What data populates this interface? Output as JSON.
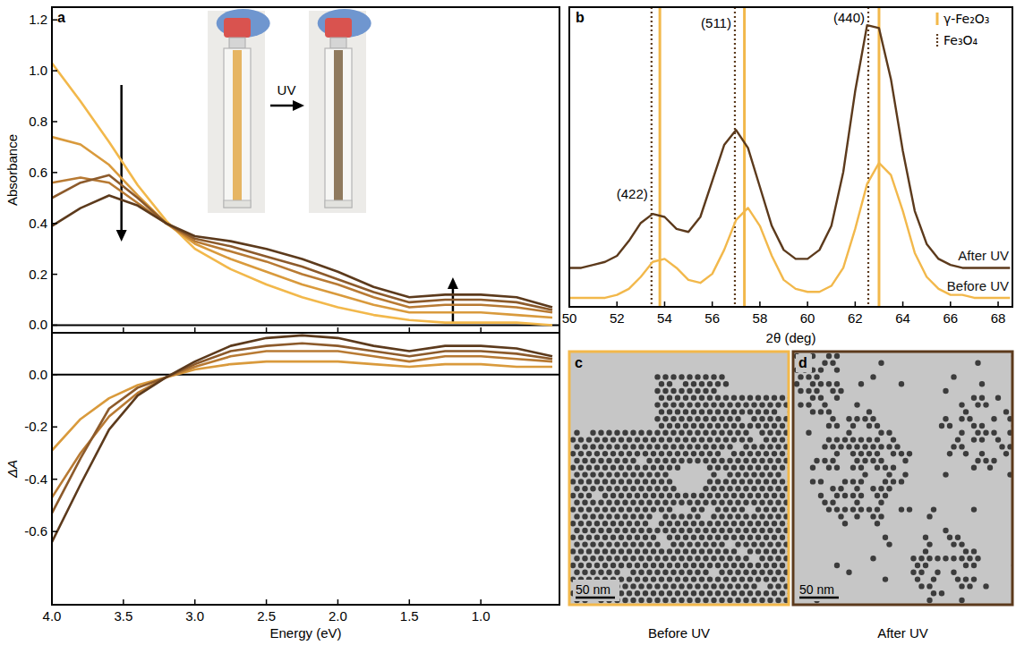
{
  "chart_data": [
    {
      "type": "line",
      "panel": "a",
      "y_label": "Absorbance",
      "x": [
        4.0,
        3.8,
        3.6,
        3.4,
        3.2,
        3.0,
        2.75,
        2.5,
        2.25,
        2.0,
        1.75,
        1.5,
        1.25,
        1.0,
        0.75,
        0.5
      ],
      "xlim": [
        4.0,
        0.45
      ],
      "ylim": [
        -0.03,
        1.25
      ],
      "yticks": [
        {
          "value": 0,
          "label": "0.0"
        },
        0.2,
        0.4,
        0.6,
        0.8,
        {
          "value": 1,
          "label": "1.0"
        },
        1.2
      ],
      "tick_labels": "y",
      "annotations": [
        {
          "text": "UV"
        }
      ],
      "series": [
        {
          "color": "#f2b84b",
          "values": [
            1.03,
            0.88,
            0.72,
            0.55,
            0.41,
            0.3,
            0.22,
            0.16,
            0.11,
            0.07,
            0.04,
            0.02,
            0.01,
            0.01,
            0.01,
            0.0
          ]
        },
        {
          "color": "#d99a3c",
          "values": [
            0.74,
            0.71,
            0.63,
            0.51,
            0.4,
            0.32,
            0.26,
            0.21,
            0.16,
            0.12,
            0.08,
            0.05,
            0.05,
            0.05,
            0.04,
            0.03
          ]
        },
        {
          "color": "#b87a33",
          "values": [
            0.56,
            0.58,
            0.56,
            0.48,
            0.4,
            0.33,
            0.29,
            0.25,
            0.2,
            0.16,
            0.11,
            0.07,
            0.08,
            0.08,
            0.07,
            0.05
          ]
        },
        {
          "color": "#8c5a2b",
          "values": [
            0.5,
            0.56,
            0.59,
            0.5,
            0.4,
            0.34,
            0.31,
            0.27,
            0.23,
            0.18,
            0.13,
            0.09,
            0.1,
            0.1,
            0.09,
            0.06
          ]
        },
        {
          "color": "#5c3a1c",
          "values": [
            0.39,
            0.46,
            0.51,
            0.47,
            0.4,
            0.35,
            0.33,
            0.3,
            0.26,
            0.21,
            0.15,
            0.11,
            0.12,
            0.12,
            0.11,
            0.07
          ]
        }
      ]
    },
    {
      "type": "line",
      "y_label": "ΔA",
      "x_label": "Energy (eV)",
      "x": [
        4.0,
        3.8,
        3.6,
        3.4,
        3.2,
        3.0,
        2.75,
        2.5,
        2.25,
        2.0,
        1.75,
        1.5,
        1.25,
        1.0,
        0.75,
        0.5
      ],
      "xlim": [
        4.0,
        0.45
      ],
      "ylim": [
        -0.88,
        0.16
      ],
      "xticks": [
        {
          "value": 4,
          "label": "4.0"
        },
        3.5,
        {
          "value": 3,
          "label": "3.0"
        },
        2.5,
        {
          "value": 2,
          "label": "2.0"
        },
        1.5,
        {
          "value": 1,
          "label": "1.0"
        }
      ],
      "yticks": [
        -0.6,
        -0.4,
        -0.2,
        {
          "value": 0,
          "label": "0.0"
        }
      ],
      "series": [
        {
          "color": "#d99a3c",
          "values": [
            -0.29,
            -0.17,
            -0.09,
            -0.04,
            -0.01,
            0.02,
            0.04,
            0.05,
            0.05,
            0.05,
            0.04,
            0.03,
            0.04,
            0.04,
            0.03,
            0.03
          ]
        },
        {
          "color": "#b87a33",
          "values": [
            -0.47,
            -0.3,
            -0.16,
            -0.07,
            -0.01,
            0.03,
            0.07,
            0.09,
            0.09,
            0.09,
            0.07,
            0.05,
            0.07,
            0.07,
            0.06,
            0.05
          ]
        },
        {
          "color": "#8c5a2b",
          "values": [
            -0.53,
            -0.32,
            -0.13,
            -0.05,
            -0.01,
            0.04,
            0.09,
            0.11,
            0.12,
            0.11,
            0.09,
            0.07,
            0.09,
            0.09,
            0.08,
            0.06
          ]
        },
        {
          "color": "#5c3a1c",
          "values": [
            -0.64,
            -0.42,
            -0.21,
            -0.08,
            -0.01,
            0.05,
            0.11,
            0.14,
            0.15,
            0.14,
            0.11,
            0.09,
            0.11,
            0.11,
            0.1,
            0.07
          ]
        }
      ]
    },
    {
      "type": "line",
      "panel": "b",
      "x_label": "2θ (deg)",
      "x": [
        50,
        50.5,
        51,
        51.5,
        52,
        52.5,
        53,
        53.5,
        54,
        54.5,
        55,
        55.5,
        56,
        56.5,
        57,
        57.5,
        58,
        58.5,
        59,
        59.5,
        60,
        60.5,
        61,
        61.5,
        62,
        62.5,
        63,
        63.5,
        64,
        64.5,
        65,
        65.5,
        66,
        66.5,
        67,
        67.5,
        68,
        68.5
      ],
      "xlim": [
        50,
        68.6
      ],
      "ylim": [
        0,
        1
      ],
      "xticks": [
        50,
        52,
        54,
        56,
        58,
        60,
        62,
        64,
        66,
        68
      ],
      "tick_labels": "x",
      "legend": "top-right",
      "series": [
        {
          "name": "After UV",
          "color": "#5c3a1c",
          "values": [
            0.13,
            0.13,
            0.14,
            0.15,
            0.17,
            0.22,
            0.28,
            0.31,
            0.3,
            0.26,
            0.25,
            0.3,
            0.42,
            0.54,
            0.59,
            0.53,
            0.4,
            0.27,
            0.19,
            0.16,
            0.16,
            0.19,
            0.27,
            0.45,
            0.72,
            0.94,
            0.93,
            0.76,
            0.52,
            0.32,
            0.21,
            0.16,
            0.14,
            0.13,
            0.13,
            0.13,
            0.13,
            0.13
          ]
        },
        {
          "name": "Before UV",
          "color": "#f2b84b",
          "values": [
            0.03,
            0.03,
            0.03,
            0.03,
            0.04,
            0.06,
            0.1,
            0.15,
            0.16,
            0.13,
            0.09,
            0.08,
            0.11,
            0.19,
            0.29,
            0.33,
            0.27,
            0.17,
            0.09,
            0.06,
            0.05,
            0.05,
            0.07,
            0.13,
            0.26,
            0.41,
            0.48,
            0.44,
            0.32,
            0.18,
            0.1,
            0.06,
            0.04,
            0.04,
            0.03,
            0.03,
            0.03,
            0.03
          ]
        },
        {
          "name": "γ-Fe₂O₃",
          "type": "vline",
          "color": "#f2b84b",
          "line_style": "solid",
          "x": [
            53.8,
            57.35,
            63.0
          ]
        },
        {
          "name": "Fe₃O₄",
          "type": "vline",
          "color": "#5c3a1c",
          "line_style": "dotted",
          "x": [
            53.45,
            56.95,
            62.55
          ]
        }
      ],
      "annotations": [
        {
          "text": "(422)",
          "x": 53.45,
          "y": 0.36
        },
        {
          "text": "(511)",
          "x": 56.95,
          "y": 0.93
        },
        {
          "text": "(440)",
          "x": 62.55,
          "y": 0.95
        }
      ]
    },
    {
      "type": "image",
      "panel": "c",
      "scale_bar": "50 nm",
      "caption": "Before UV",
      "color": "#f2b84b"
    },
    {
      "type": "image",
      "panel": "d",
      "scale_bar": "50 nm",
      "caption": "After UV",
      "color": "#5c3a1c"
    }
  ]
}
